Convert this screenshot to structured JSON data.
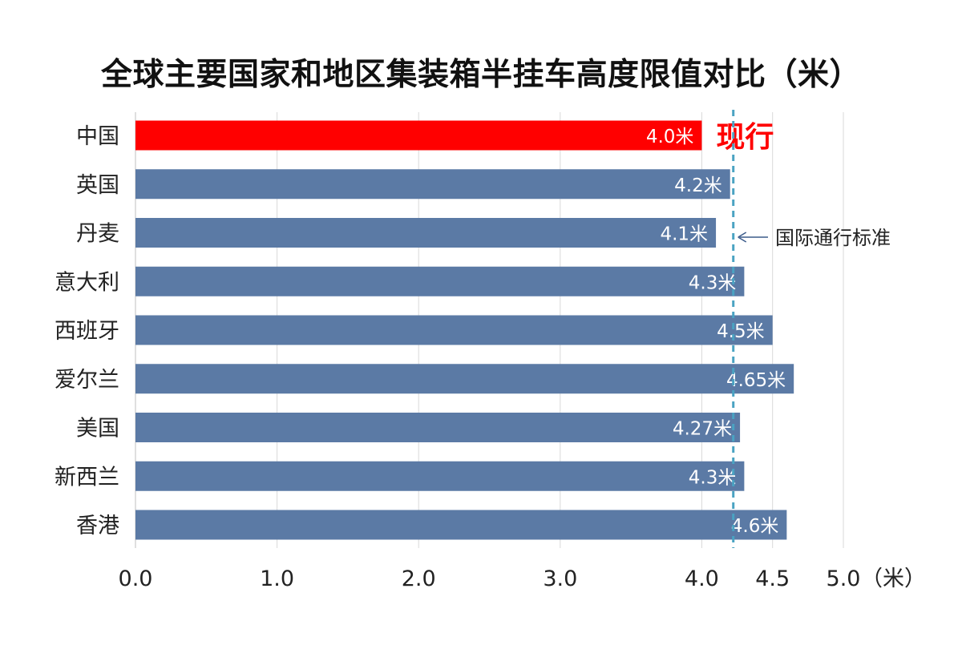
{
  "chart_data": {
    "type": "bar",
    "orientation": "horizontal",
    "title": "全球主要国家和地区集装箱半挂车高度限值对比（米）",
    "categories": [
      "中国",
      "英国",
      "丹麦",
      "意大利",
      "西班牙",
      "爱尔兰",
      "美国",
      "新西兰",
      "香港"
    ],
    "values": [
      4.0,
      4.2,
      4.1,
      4.3,
      4.5,
      4.65,
      4.27,
      4.3,
      4.6
    ],
    "value_labels": [
      "4.0米",
      "4.2米",
      "4.1米",
      "4.3米",
      "4.5米",
      "4.65米",
      "4.27米",
      "4.3米",
      "4.6米"
    ],
    "xlim": [
      0,
      5.0
    ],
    "x_ticks": [
      0.0,
      1.0,
      2.0,
      3.0,
      4.0,
      4.5,
      5.0
    ],
    "x_tick_labels": [
      "0.0",
      "1.0",
      "2.0",
      "3.0",
      "4.0",
      "4.5",
      "5.0"
    ],
    "x_unit_label": "（米）",
    "grid": true,
    "highlight": {
      "category": "中国",
      "color": "#ff0000",
      "tag": "现行"
    },
    "bar_color": "#5b7aa5",
    "reference_line": {
      "value": 4.2,
      "label": "国际通行标准",
      "color": "#4aa3c2"
    }
  }
}
